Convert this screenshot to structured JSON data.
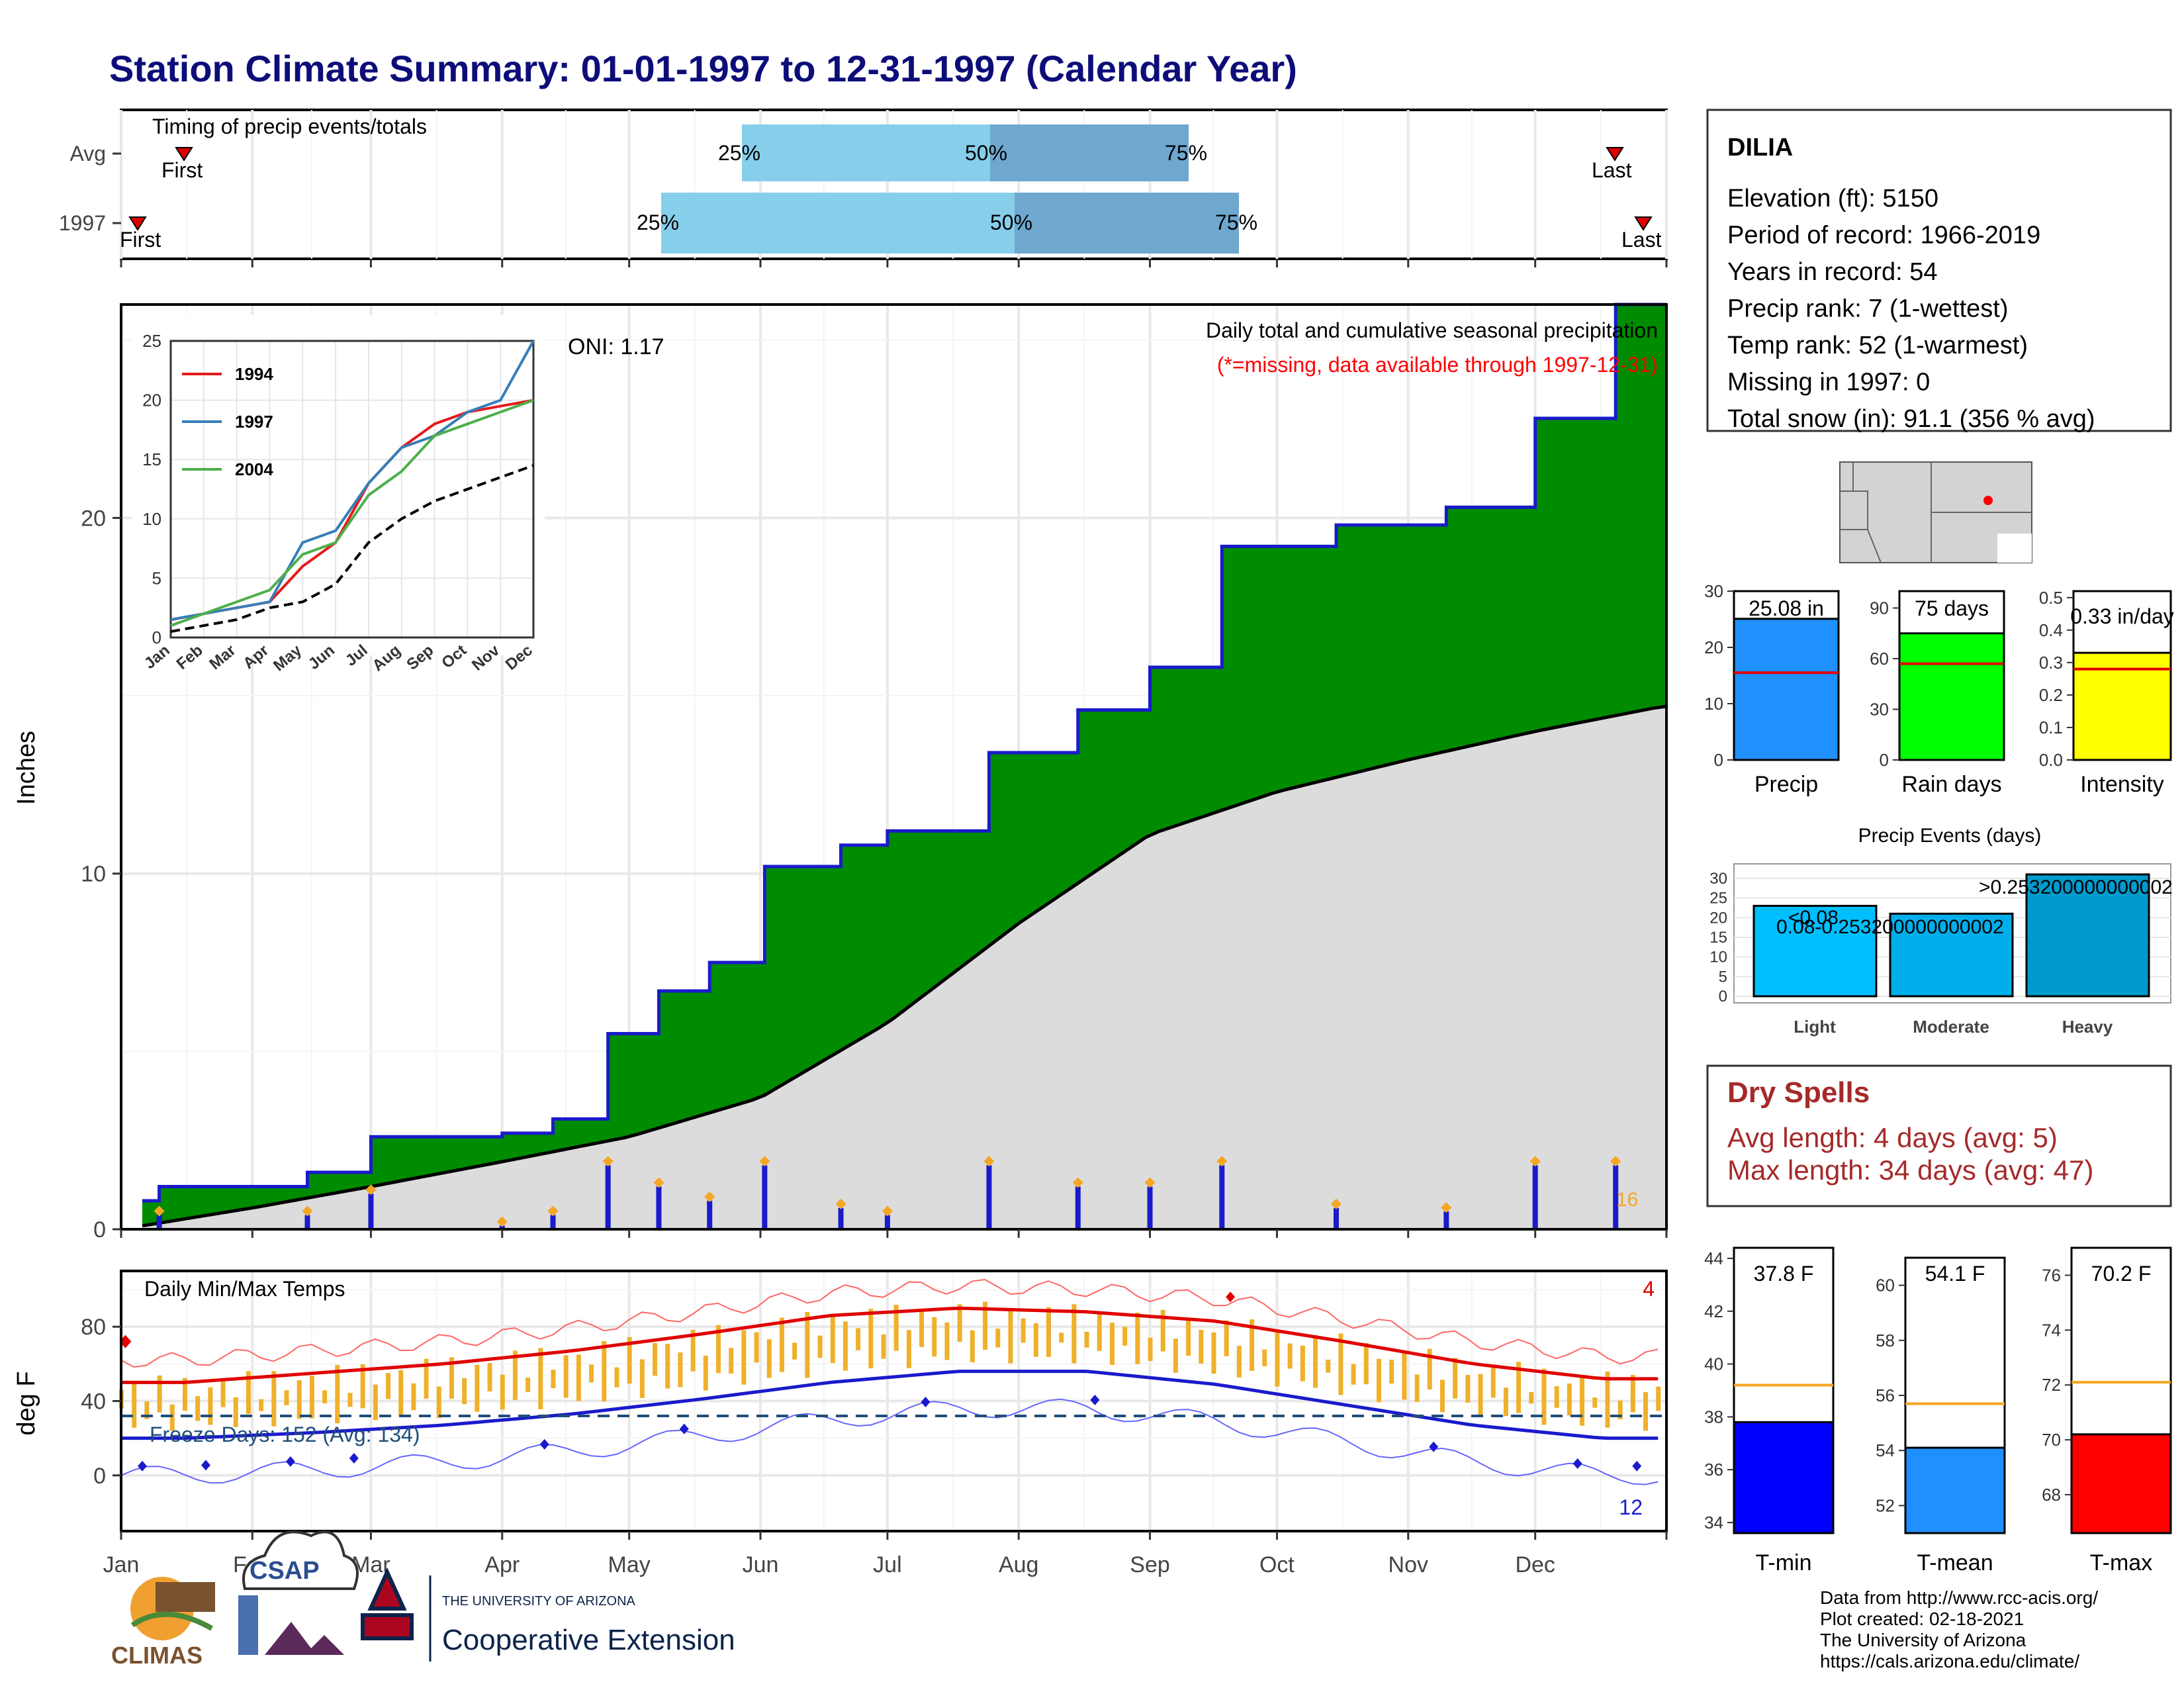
{
  "title": "Station Climate Summary: 01-01-1997 to 12-31-1997 (Calendar Year)",
  "colors": {
    "title": "#0d0d7a",
    "green": "#008c00",
    "blue_line": "#1a1acc",
    "gray_area": "#dcdcdc",
    "dry": "#a52a2a",
    "missing": "#ff0000",
    "orange": "#f5a623"
  },
  "timing": {
    "label": "Timing of precip events/totals",
    "rows": [
      {
        "name": "Avg",
        "first": "First",
        "last": "Last",
        "p25": "25%",
        "p50": "50%",
        "p75": "75%"
      },
      {
        "name": "1997",
        "first": "First",
        "last": "Last",
        "p25": "25%",
        "p50": "50%",
        "p75": "75%"
      }
    ]
  },
  "precip": {
    "ylabel": "Inches",
    "yticks": [
      "0",
      "10",
      "20"
    ],
    "oni": "ONI: 1.17",
    "note1": "Daily total and cumulative seasonal precipitation",
    "note2": "(*=missing, data available through 1997-12-31)",
    "count_label": "16"
  },
  "inset": {
    "yticks": [
      "0",
      "5",
      "10",
      "15",
      "20",
      "25"
    ],
    "months": [
      "Jan",
      "Feb",
      "Mar",
      "Apr",
      "May",
      "Jun",
      "Jul",
      "Aug",
      "Sep",
      "Oct",
      "Nov",
      "Dec"
    ],
    "legend": [
      {
        "name": "1994",
        "color": "#e41a1c"
      },
      {
        "name": "1997",
        "color": "#377eb8"
      },
      {
        "name": "2004",
        "color": "#4daf4a"
      }
    ]
  },
  "temps": {
    "label": "Daily Min/Max Temps",
    "ylabel": "deg F",
    "yticks": [
      "0",
      "40",
      "80"
    ],
    "freeze": "Freeze Days: 152 (Avg: 134)",
    "count_max": "4",
    "count_min": "12"
  },
  "months": [
    "Jan",
    "Feb",
    "Mar",
    "Apr",
    "May",
    "Jun",
    "Jul",
    "Aug",
    "Sep",
    "Oct",
    "Nov",
    "Dec"
  ],
  "station": {
    "name": "DILIA",
    "lines": [
      "Elevation (ft): 5150",
      "Period of record: 1966-2019",
      "Years in record: 54",
      "Precip rank: 7 (1-wettest)",
      "Temp rank: 52 (1-warmest)",
      "Missing in 1997: 0",
      "Total snow (in): 91.1 (356 % avg)"
    ]
  },
  "bars3": [
    {
      "label": "Precip",
      "value": "25.08 in",
      "yticks": [
        "0",
        "10",
        "20",
        "30"
      ]
    },
    {
      "label": "Rain days",
      "value": "75 days",
      "yticks": [
        "0",
        "30",
        "60",
        "90"
      ]
    },
    {
      "label": "Intensity",
      "value": "0.33 in/day",
      "yticks": [
        "0.0",
        "0.1",
        "0.2",
        "0.3",
        "0.4",
        "0.5"
      ]
    }
  ],
  "events": {
    "title": "Precip Events (days)",
    "yticks": [
      "0",
      "5",
      "10",
      "15",
      "20",
      "25",
      "30"
    ],
    "bars": [
      {
        "name": "Light",
        "label": "<0.08"
      },
      {
        "name": "Moderate",
        "label": "0.08-0.253200000000002"
      },
      {
        "name": "Heavy",
        "label": ">0.253200000000002"
      }
    ]
  },
  "dry": {
    "title": "Dry Spells",
    "line1": "Avg length: 4 days (avg: 5)",
    "line2": "Max length: 34 days (avg: 47)"
  },
  "tbars": [
    {
      "label": "T-min",
      "value": "37.8 F",
      "yticks": [
        "34",
        "36",
        "38",
        "40",
        "42",
        "44"
      ]
    },
    {
      "label": "T-mean",
      "value": "54.1 F",
      "yticks": [
        "52",
        "54",
        "56",
        "58",
        "60"
      ]
    },
    {
      "label": "T-max",
      "value": "70.2 F",
      "yticks": [
        "68",
        "70",
        "72",
        "74",
        "76"
      ]
    }
  ],
  "footer": [
    "Data from http://www.rcc-acis.org/",
    "Plot created: 02-18-2021",
    "The University of Arizona",
    "https://cals.arizona.edu/climate/"
  ],
  "logos": {
    "climas": "CLIMAS",
    "csap": "CSAP",
    "ua_small": "THE UNIVERSITY OF ARIZONA",
    "ua_big": "Cooperative Extension"
  },
  "chart_data": [
    {
      "type": "area",
      "title": "Daily total and cumulative seasonal precipitation",
      "ylabel": "Inches",
      "ylim": [
        0,
        26
      ],
      "series": [
        {
          "name": "1997",
          "x": [
            "01-01",
            "01-10",
            "02-14",
            "03-01",
            "04-01",
            "04-13",
            "04-26",
            "05-08",
            "05-20",
            "06-02",
            "06-20",
            "07-01",
            "07-25",
            "08-15",
            "09-01",
            "09-18",
            "10-15",
            "11-10",
            "12-01",
            "12-20",
            "12-31"
          ],
          "values": [
            0.8,
            1.2,
            1.6,
            2.6,
            2.7,
            3.1,
            5.5,
            6.7,
            7.5,
            10.2,
            10.8,
            11.2,
            13.4,
            14.6,
            15.8,
            19.2,
            19.8,
            20.3,
            22.8,
            26.0,
            26.0
          ]
        },
        {
          "name": "average",
          "x": [
            "01-01",
            "02-01",
            "03-01",
            "04-01",
            "05-01",
            "06-01",
            "07-01",
            "08-01",
            "09-01",
            "10-01",
            "11-01",
            "12-01",
            "12-31"
          ],
          "values": [
            0.0,
            0.6,
            1.2,
            1.9,
            2.6,
            3.7,
            5.8,
            8.6,
            11.1,
            12.3,
            13.2,
            14.0,
            14.7
          ]
        }
      ]
    },
    {
      "type": "line",
      "title": "",
      "categories": [
        "Jan",
        "Feb",
        "Mar",
        "Apr",
        "May",
        "Jun",
        "Jul",
        "Aug",
        "Sep",
        "Oct",
        "Nov",
        "Dec"
      ],
      "ylim": [
        0,
        25
      ],
      "series": [
        {
          "name": "1994",
          "values": [
            1.5,
            2,
            2.5,
            3,
            6,
            8,
            13,
            16,
            18,
            19,
            19.5,
            20
          ]
        },
        {
          "name": "1997",
          "values": [
            1.5,
            2,
            2.5,
            3,
            8,
            9,
            13,
            16,
            17,
            19,
            20,
            25
          ]
        },
        {
          "name": "2004",
          "values": [
            1,
            2,
            3,
            4,
            7,
            8,
            12,
            14,
            17,
            18,
            19,
            20
          ]
        },
        {
          "values": [
            0.5,
            1,
            1.5,
            2.5,
            3,
            4.5,
            8,
            10,
            11.5,
            12.5,
            13.5,
            14.5
          ]
        }
      ]
    },
    {
      "type": "bar",
      "categories": [
        "Precip",
        "Rain days",
        "Intensity"
      ],
      "values": [
        25.08,
        75,
        0.33
      ],
      "averages": [
        15.5,
        57,
        0.28
      ]
    },
    {
      "type": "bar",
      "title": "Precip Events (days)",
      "categories": [
        "Light",
        "Moderate",
        "Heavy"
      ],
      "values": [
        23,
        21,
        31
      ],
      "ylim": [
        0,
        32
      ]
    },
    {
      "type": "bar",
      "categories": [
        "T-min",
        "T-mean",
        "T-max"
      ],
      "values": [
        37.8,
        54.1,
        70.2
      ],
      "averages": [
        39.2,
        55.7,
        72.1
      ]
    },
    {
      "type": "line",
      "title": "Daily Min/Max Temps",
      "ylabel": "deg F",
      "ylim": [
        -30,
        110
      ],
      "categories": [
        "Jan",
        "Feb",
        "Mar",
        "Apr",
        "May",
        "Jun",
        "Jul",
        "Aug",
        "Sep",
        "Oct",
        "Nov",
        "Dec"
      ],
      "series": [
        {
          "name": "avg max",
          "values": [
            50,
            55,
            60,
            67,
            76,
            86,
            90,
            88,
            83,
            72,
            60,
            52
          ]
        },
        {
          "name": "avg min",
          "values": [
            20,
            23,
            27,
            33,
            41,
            50,
            56,
            56,
            49,
            38,
            27,
            20
          ]
        }
      ]
    }
  ]
}
